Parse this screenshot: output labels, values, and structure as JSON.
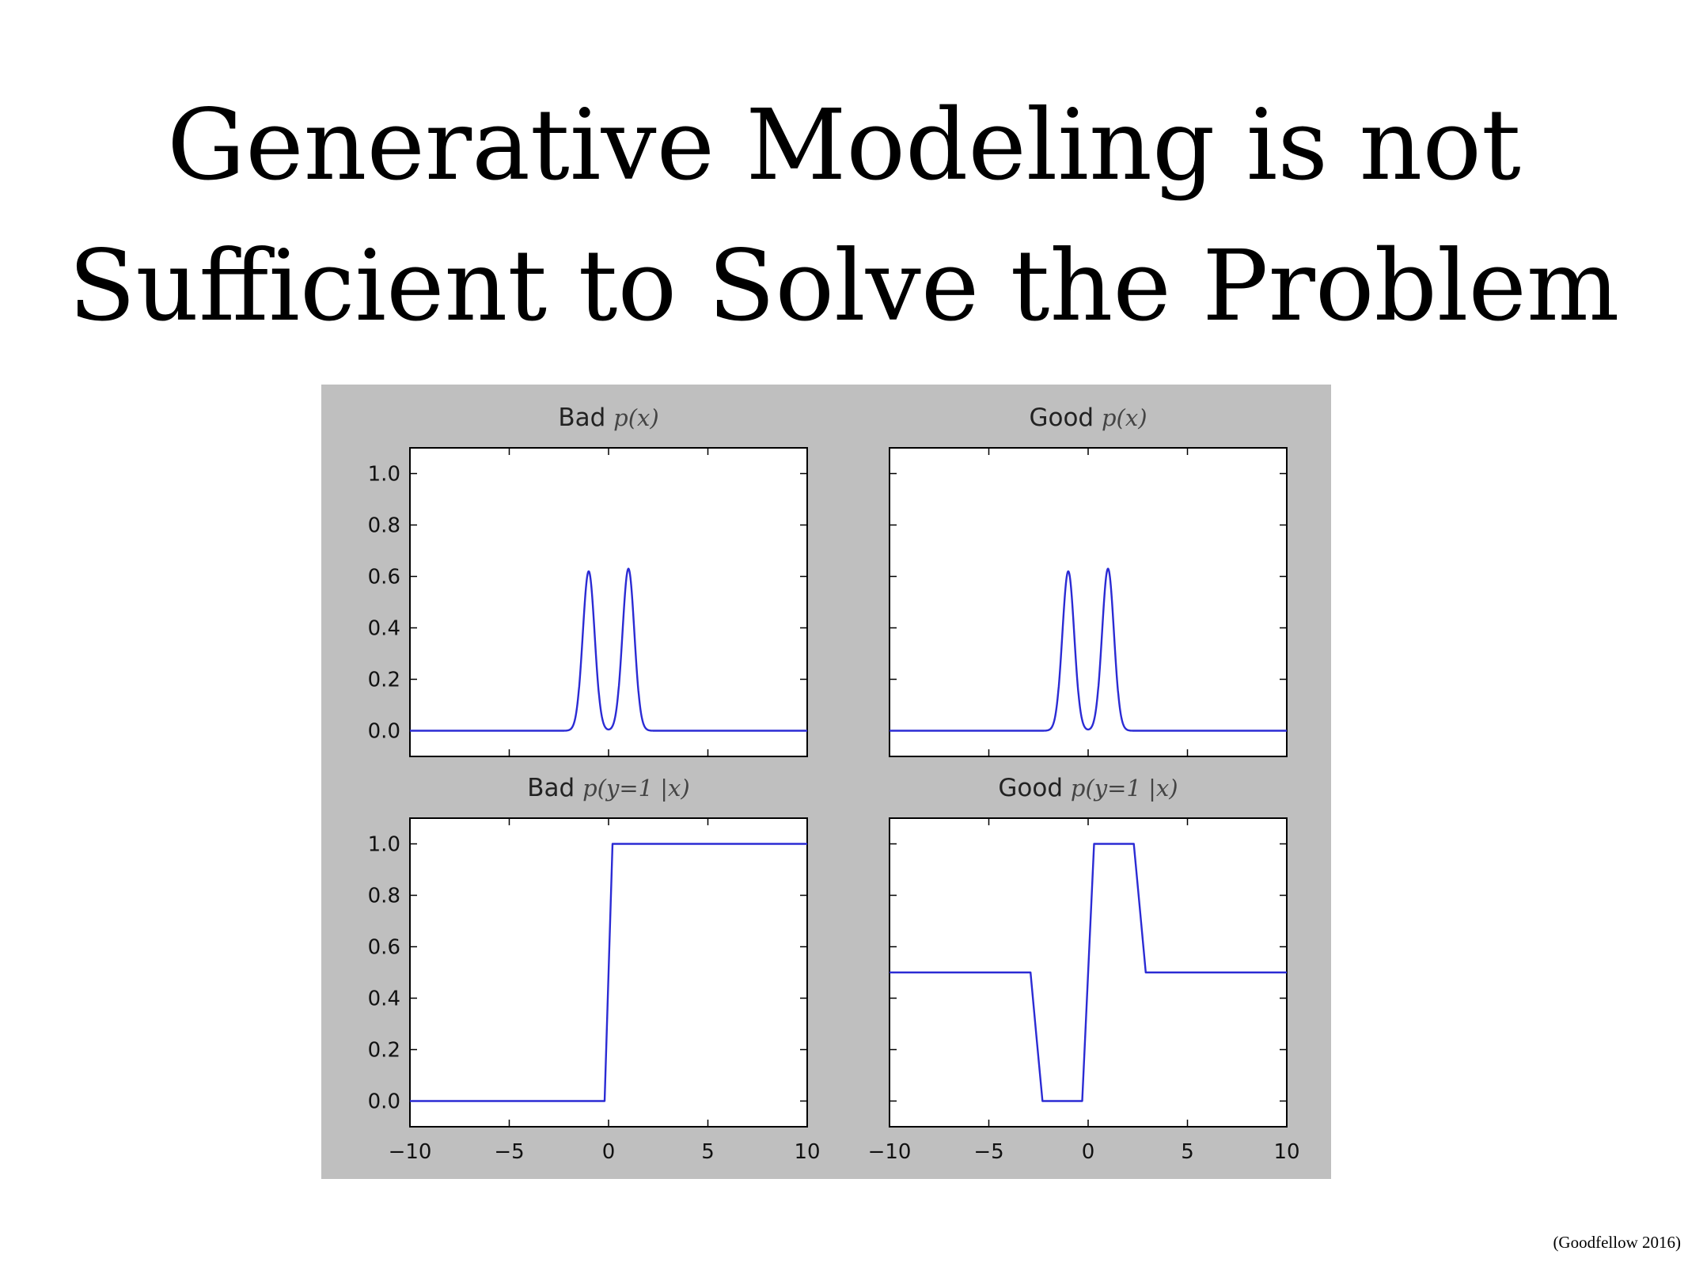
{
  "slide": {
    "title_line1": "Generative Modeling is not",
    "title_line2": "Sufficient to Solve the Problem",
    "citation": "(Goodfellow 2016)"
  },
  "colors": {
    "panel_bg": "#bfbfbf",
    "plot_bg": "#ffffff",
    "line": "#2b2bd4"
  },
  "chart_data": [
    {
      "type": "line",
      "title_word": "Bad",
      "title_math": "p(x)",
      "xlim": [
        -10,
        10
      ],
      "ylim": [
        -0.1,
        1.1
      ],
      "show_xticklabels": false,
      "show_yticklabels": true,
      "curve": "twin_peaks",
      "x": [
        -10,
        -2,
        -1.5,
        -1.2,
        -1.0,
        -0.8,
        -0.5,
        0,
        0.5,
        0.8,
        1.0,
        1.2,
        1.5,
        2,
        10
      ],
      "y": [
        0.0,
        0.0,
        0.15,
        0.53,
        0.62,
        0.53,
        0.15,
        0.02,
        0.15,
        0.53,
        0.63,
        0.53,
        0.15,
        0.0,
        0.0
      ]
    },
    {
      "type": "line",
      "title_word": "Good",
      "title_math": "p(x)",
      "xlim": [
        -10,
        10
      ],
      "ylim": [
        -0.1,
        1.1
      ],
      "show_xticklabels": false,
      "show_yticklabels": false,
      "curve": "twin_peaks",
      "x": [
        -10,
        -2,
        -1.5,
        -1.2,
        -1.0,
        -0.8,
        -0.5,
        0,
        0.5,
        0.8,
        1.0,
        1.2,
        1.5,
        2,
        10
      ],
      "y": [
        0.0,
        0.0,
        0.15,
        0.53,
        0.62,
        0.53,
        0.15,
        0.02,
        0.15,
        0.53,
        0.63,
        0.53,
        0.15,
        0.0,
        0.0
      ]
    },
    {
      "type": "line",
      "title_word": "Bad",
      "title_math": "p(y=1 |x)",
      "xlim": [
        -10,
        10
      ],
      "ylim": [
        -0.1,
        1.1
      ],
      "show_xticklabels": true,
      "show_yticklabels": true,
      "curve": "step",
      "x": [
        -10,
        -0.2,
        0,
        0.2,
        10
      ],
      "y": [
        0.0,
        0.0,
        0.5,
        1.0,
        1.0
      ]
    },
    {
      "type": "line",
      "title_word": "Good",
      "title_math": "p(y=1 |x)",
      "xlim": [
        -10,
        10
      ],
      "ylim": [
        -0.1,
        1.1
      ],
      "show_xticklabels": true,
      "show_yticklabels": false,
      "curve": "bump",
      "x": [
        -10,
        -2.9,
        -2.6,
        -2.3,
        -0.3,
        0,
        0.3,
        2.3,
        2.6,
        2.9,
        10
      ],
      "y": [
        0.5,
        0.5,
        0.25,
        0.0,
        0.0,
        0.5,
        1.0,
        1.0,
        0.75,
        0.5,
        0.5
      ]
    }
  ],
  "axes": {
    "yticks": [
      0.0,
      0.2,
      0.4,
      0.6,
      0.8,
      1.0
    ],
    "ytick_labels": [
      "0.0",
      "0.2",
      "0.4",
      "0.6",
      "0.8",
      "1.0"
    ],
    "xticks": [
      -10,
      -5,
      0,
      5,
      10
    ],
    "xtick_labels": [
      "−10",
      "−5",
      "0",
      "5",
      "10"
    ]
  }
}
